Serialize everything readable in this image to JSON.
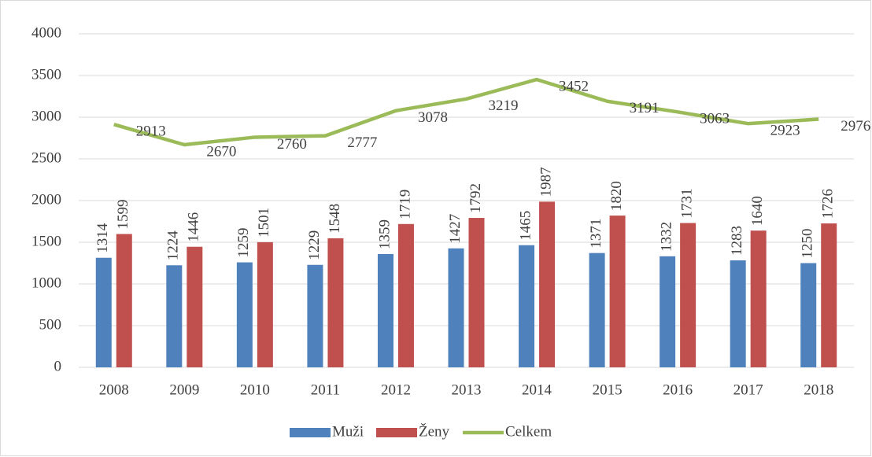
{
  "chart_data": {
    "type": "bar",
    "categories": [
      "2008",
      "2009",
      "2010",
      "2011",
      "2012",
      "2013",
      "2014",
      "2015",
      "2016",
      "2017",
      "2018"
    ],
    "series": [
      {
        "name": "Muži",
        "color": "#4f81bd",
        "values": [
          1314,
          1224,
          1259,
          1229,
          1359,
          1427,
          1465,
          1371,
          1332,
          1283,
          1250
        ]
      },
      {
        "name": "Ženy",
        "color": "#c0504d",
        "values": [
          1599,
          1446,
          1501,
          1548,
          1719,
          1792,
          1987,
          1820,
          1731,
          1640,
          1726
        ]
      },
      {
        "name": "Celkem",
        "color": "#9bbb59",
        "type": "line",
        "values": [
          2913,
          2670,
          2760,
          2777,
          3078,
          3219,
          3452,
          3191,
          3063,
          2923,
          2976
        ]
      }
    ],
    "ylim": [
      0,
      4000
    ],
    "yticks": [
      0,
      500,
      1000,
      1500,
      2000,
      2500,
      3000,
      3500,
      4000
    ],
    "grid": true,
    "legend": "bottom"
  }
}
